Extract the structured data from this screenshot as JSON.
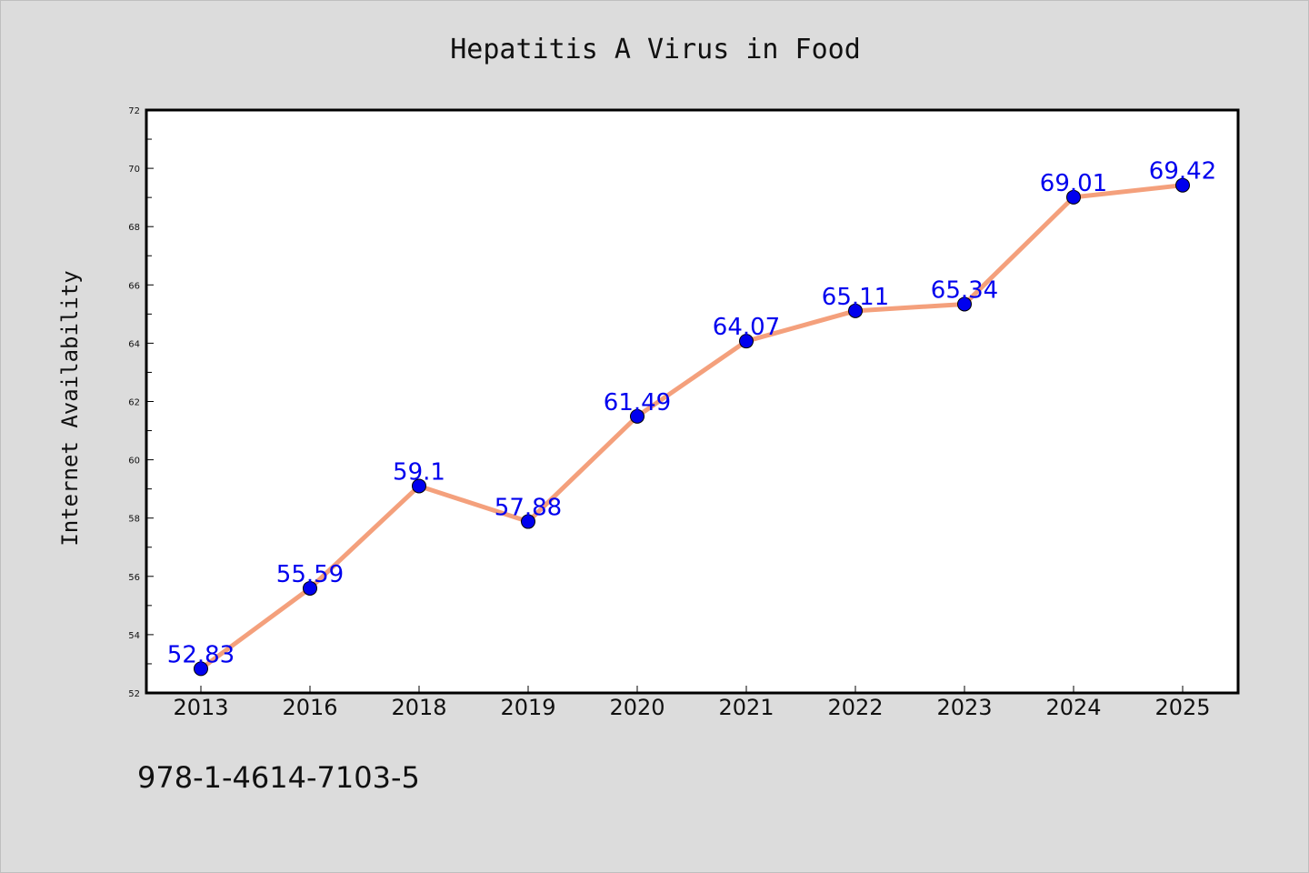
{
  "chart_data": {
    "type": "line",
    "title": "Hepatitis A Virus in Food",
    "xlabel": "",
    "ylabel": "Internet Availability",
    "categories": [
      "2013",
      "2016",
      "2018",
      "2019",
      "2020",
      "2021",
      "2022",
      "2023",
      "2024",
      "2025"
    ],
    "series": [
      {
        "values": [
          52.83,
          55.59,
          59.1,
          57.88,
          61.49,
          64.07,
          65.11,
          65.34,
          69.01,
          69.42
        ],
        "labels": [
          "52.83",
          "55.59",
          "59.1",
          "57.88",
          "61.49",
          "64.07",
          "65.11",
          "65.34",
          "69.01",
          "69.42"
        ]
      }
    ],
    "ylim": [
      52,
      72
    ],
    "yticks": [
      "52",
      "54",
      "56",
      "58",
      "60",
      "62",
      "64",
      "66",
      "68",
      "70",
      "72"
    ],
    "grid": false,
    "legend": "none",
    "colors": {
      "line": "#f4a07c",
      "marker": "#0000ee",
      "label": "#0000ee",
      "plot_background": "#ffffff",
      "figure_background": "#dcdcdc"
    }
  },
  "footer": {
    "isbn": "978-1-4614-7103-5"
  }
}
